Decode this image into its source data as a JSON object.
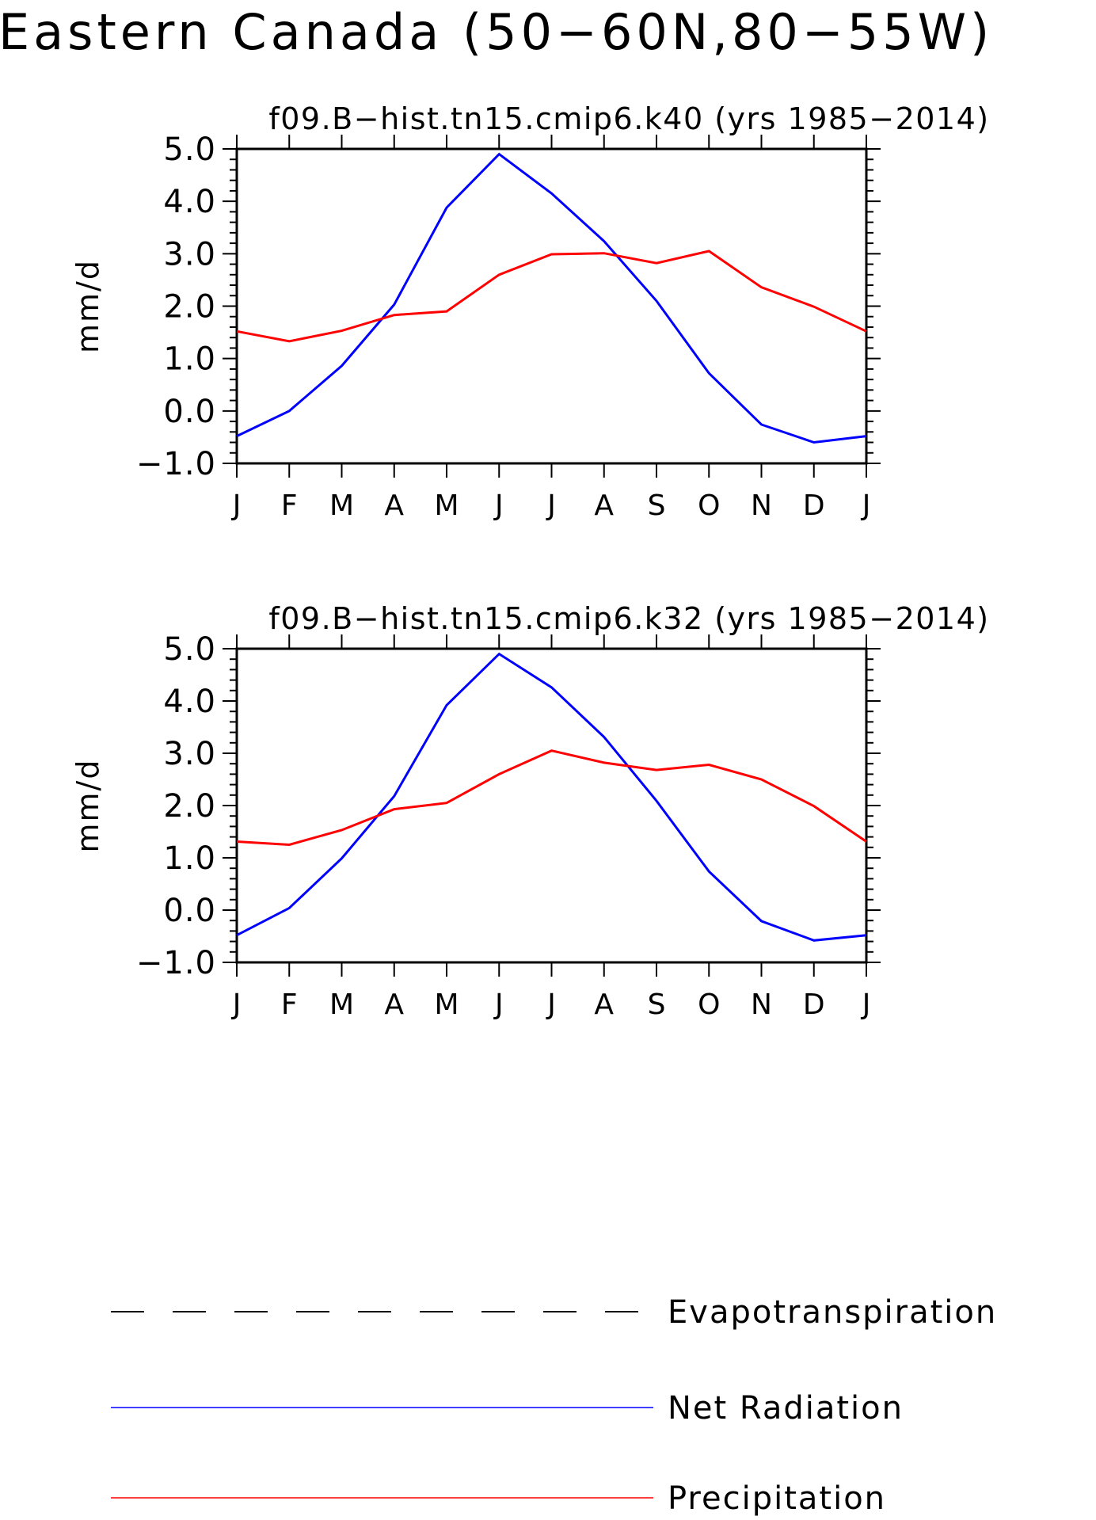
{
  "figure": {
    "title": "Eastern Canada (50−60N,80−55W)"
  },
  "chart_data": [
    {
      "type": "line",
      "title": "f09.B−hist.tn15.cmip6.k40 (yrs 1985−2014)",
      "xlabel": "",
      "ylabel": "mm/d",
      "categories": [
        "J",
        "F",
        "M",
        "A",
        "M",
        "J",
        "J",
        "A",
        "S",
        "O",
        "N",
        "D",
        "J"
      ],
      "ylim": [
        -1.0,
        5.0
      ],
      "yticks": [
        "−1.0",
        "0.0",
        "1.0",
        "2.0",
        "3.0",
        "4.0",
        "5.0"
      ],
      "grid": false,
      "series": [
        {
          "name": "Net Radiation",
          "color": "#0000ff",
          "values": [
            -0.48,
            0.0,
            0.86,
            2.03,
            3.88,
            4.9,
            4.15,
            3.24,
            2.1,
            0.72,
            -0.26,
            -0.6,
            -0.48
          ]
        },
        {
          "name": "Precipitation",
          "color": "#ff0000",
          "values": [
            1.52,
            1.33,
            1.53,
            1.83,
            1.9,
            2.6,
            2.99,
            3.01,
            2.82,
            3.05,
            2.36,
            1.99,
            1.52
          ]
        }
      ]
    },
    {
      "type": "line",
      "title": "f09.B−hist.tn15.cmip6.k32 (yrs 1985−2014)",
      "xlabel": "",
      "ylabel": "mm/d",
      "categories": [
        "J",
        "F",
        "M",
        "A",
        "M",
        "J",
        "J",
        "A",
        "S",
        "O",
        "N",
        "D",
        "J"
      ],
      "ylim": [
        -1.0,
        5.0
      ],
      "yticks": [
        "−1.0",
        "0.0",
        "1.0",
        "2.0",
        "3.0",
        "4.0",
        "5.0"
      ],
      "grid": false,
      "series": [
        {
          "name": "Net Radiation",
          "color": "#0000ff",
          "values": [
            -0.48,
            0.04,
            0.99,
            2.18,
            3.92,
            4.9,
            4.26,
            3.31,
            2.09,
            0.74,
            -0.21,
            -0.58,
            -0.48
          ]
        },
        {
          "name": "Precipitation",
          "color": "#ff0000",
          "values": [
            1.31,
            1.25,
            1.53,
            1.93,
            2.05,
            2.6,
            3.05,
            2.82,
            2.68,
            2.78,
            2.5,
            1.99,
            1.31
          ]
        }
      ]
    }
  ],
  "legend": {
    "items": [
      {
        "label": "Evapotranspiration",
        "color": "#000000",
        "style": "dashed"
      },
      {
        "label": "Net Radiation",
        "color": "#0000ff",
        "style": "solid"
      },
      {
        "label": "Precipitation",
        "color": "#ff0000",
        "style": "solid"
      }
    ]
  }
}
